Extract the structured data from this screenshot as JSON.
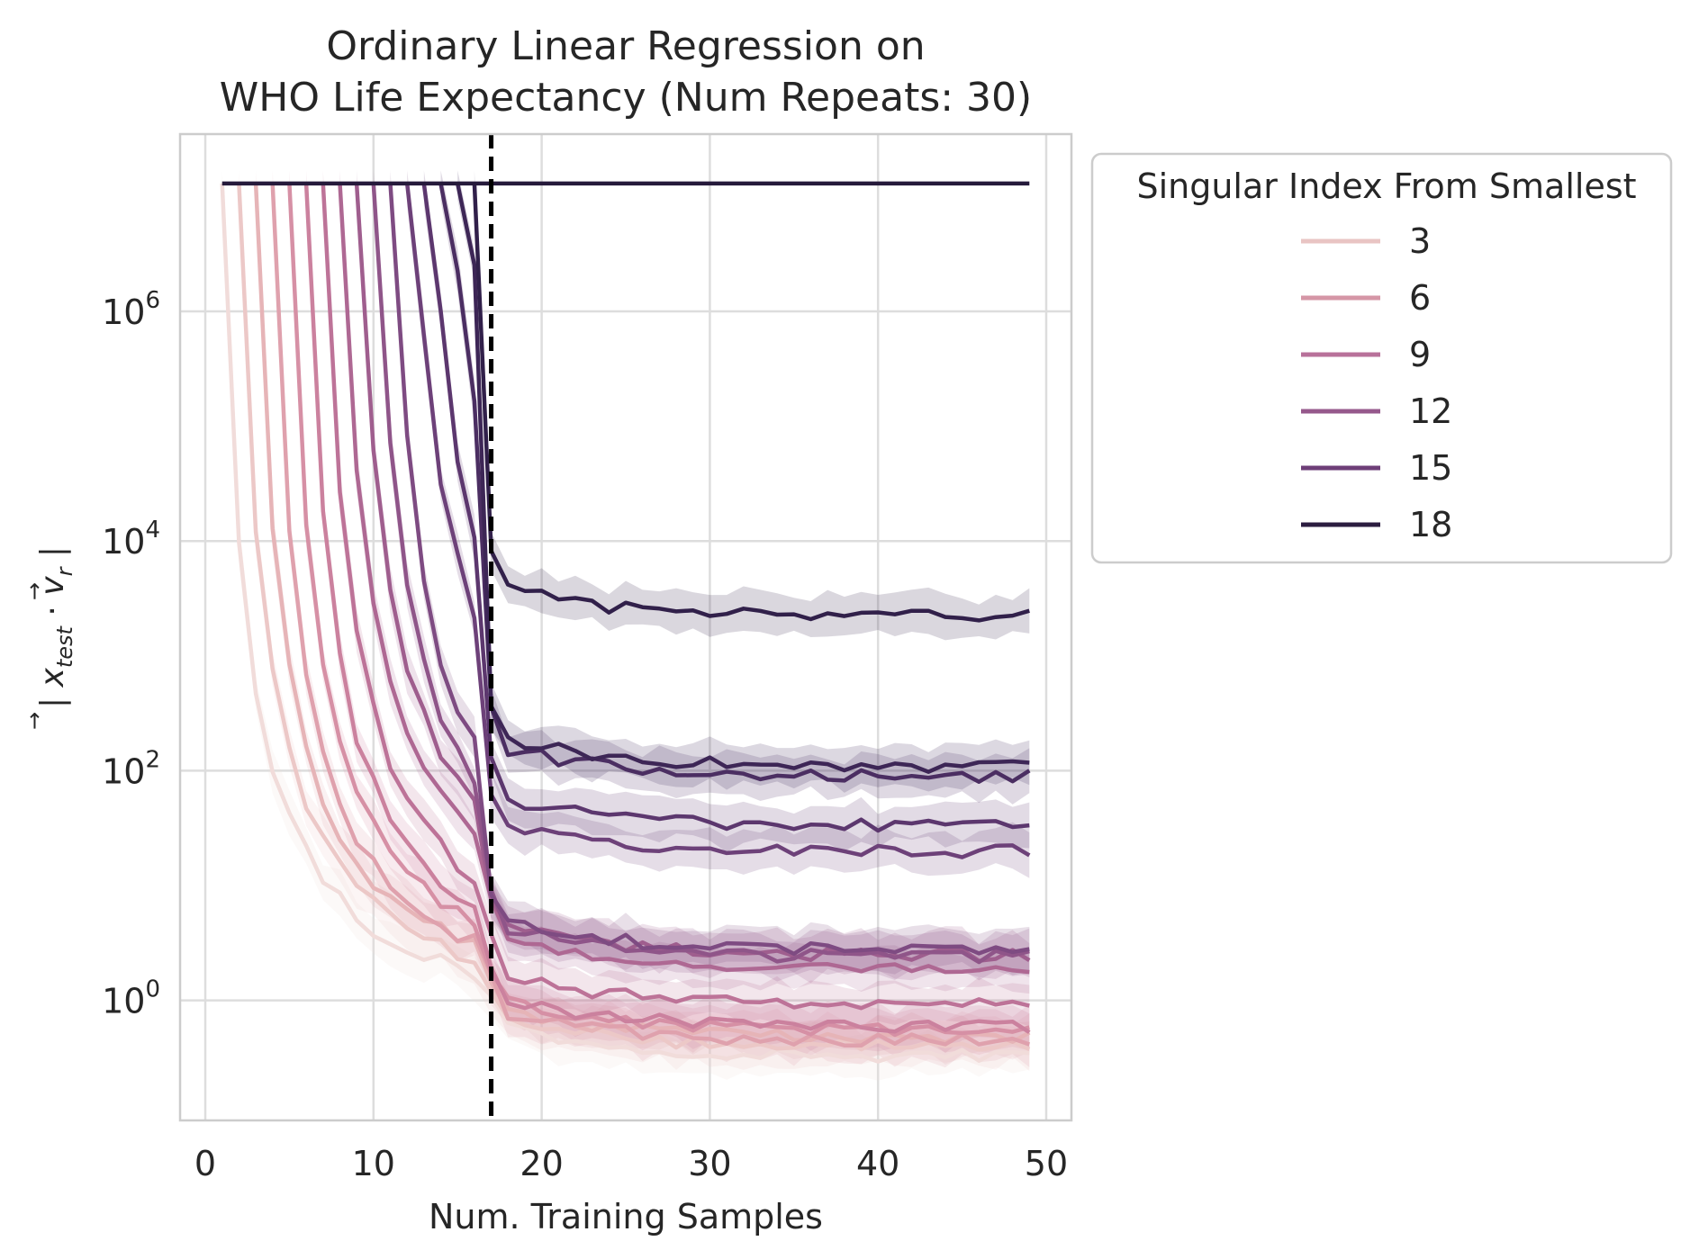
{
  "chart_data": {
    "type": "line",
    "title_line1": "Ordinary Linear Regression on",
    "title_line2": "WHO Life Expectancy (Num Repeats: 30)",
    "xlabel": "Num. Training Samples",
    "ylabel": "|x_test · v_r|",
    "y_scale": "log",
    "xlim": [
      -1.5,
      51.5
    ],
    "ylim": [
      0.09,
      35000000
    ],
    "x_ticks": [
      0,
      10,
      20,
      30,
      40,
      50
    ],
    "x_tick_labels": [
      "0",
      "10",
      "20",
      "30",
      "40",
      "50"
    ],
    "y_ticks": [
      1,
      100,
      10000,
      1000000
    ],
    "y_tick_labels": [
      {
        "base": "10",
        "exp": "0"
      },
      {
        "base": "10",
        "exp": "2"
      },
      {
        "base": "10",
        "exp": "4"
      },
      {
        "base": "10",
        "exp": "6"
      }
    ],
    "grid": true,
    "vline": {
      "x": 17,
      "style": "dashed",
      "color": "#000000"
    },
    "legend": {
      "title": "Singular Index From Smallest",
      "placement": "outside-top-right",
      "entries": [
        {
          "label": "3",
          "color": "#e9c4c3"
        },
        {
          "label": "6",
          "color": "#d596a6"
        },
        {
          "label": "9",
          "color": "#b8719a"
        },
        {
          "label": "12",
          "color": "#96598c"
        },
        {
          "label": "15",
          "color": "#6e3f78"
        },
        {
          "label": "18",
          "color": "#2c1d40"
        }
      ]
    },
    "series_count": 17,
    "series_indices": [
      2,
      3,
      4,
      5,
      6,
      7,
      8,
      9,
      10,
      11,
      12,
      13,
      14,
      15,
      16,
      17,
      18
    ],
    "peak_value": 13000000,
    "final_values": [
      0.33,
      0.4,
      0.48,
      0.45,
      0.55,
      0.6,
      0.95,
      1.9,
      2.5,
      2.4,
      2.8,
      20,
      33,
      90,
      110,
      2200,
      13000000
    ],
    "x_range": [
      1,
      49
    ],
    "palette": [
      "#f1dcda",
      "#ecc8c7",
      "#e6b4b7",
      "#dfa1ad",
      "#d690a5",
      "#cb819e",
      "#bd7398",
      "#ae6893",
      "#9f5e8e",
      "#8f5589",
      "#7e4b82",
      "#6d4179",
      "#5c376e",
      "#4b2e62",
      "#3d2656",
      "#31204a",
      "#261a3b"
    ]
  }
}
